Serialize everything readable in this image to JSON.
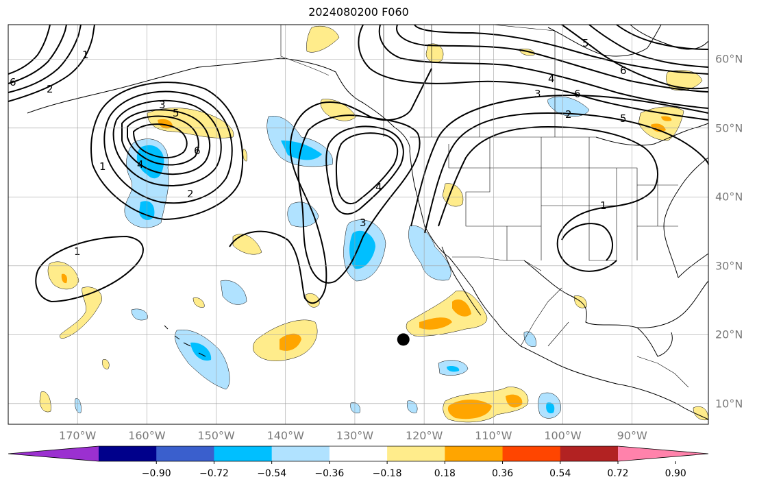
{
  "title": "2024080200 F060",
  "map": {
    "projection": "PlateCarree",
    "extent": {
      "lon_min": -180,
      "lon_max": -79,
      "lat_min": 7,
      "lat_max": 65
    },
    "gridlines": true,
    "lon_labels": [
      {
        "lon": -170,
        "label": "170°W"
      },
      {
        "lon": -160,
        "label": "160°W"
      },
      {
        "lon": -150,
        "label": "150°W"
      },
      {
        "lon": -140,
        "label": "140°W"
      },
      {
        "lon": -130,
        "label": "130°W"
      },
      {
        "lon": -120,
        "label": "120°W"
      },
      {
        "lon": -110,
        "label": "110°W"
      },
      {
        "lon": -100,
        "label": "100°W"
      },
      {
        "lon": -90,
        "label": "90°W"
      }
    ],
    "lat_labels": [
      {
        "lat": 60,
        "label": "60°N"
      },
      {
        "lat": 50,
        "label": "50°N"
      },
      {
        "lat": 40,
        "label": "40°N"
      },
      {
        "lat": 30,
        "label": "30°N"
      },
      {
        "lat": 20,
        "label": "20°N"
      },
      {
        "lat": 10,
        "label": "10°N"
      }
    ],
    "marker": {
      "lon": -123,
      "lat": 19.3
    },
    "contour_labels": [
      "1",
      "2",
      "3",
      "4",
      "5",
      "6"
    ]
  },
  "colorbar": {
    "colors": [
      "#9b30d0",
      "#00008b",
      "#3a5fcd",
      "#00bfff",
      "#b0e2ff",
      "#ffffff",
      "#ffec8b",
      "#ffa500",
      "#ff4500",
      "#b22222",
      "#ff82ab"
    ],
    "ticks": [
      "−0.90",
      "−0.72",
      "−0.54",
      "−0.36",
      "−0.18",
      "0.18",
      "0.36",
      "0.54",
      "0.72",
      "0.90"
    ]
  },
  "colors": {
    "positive_light": "#ffec8b",
    "positive_mid": "#ffa500",
    "negative_light": "#b0e2ff",
    "negative_mid": "#00bfff",
    "land_outline": "#000000",
    "grid": "#a0a0a0"
  }
}
